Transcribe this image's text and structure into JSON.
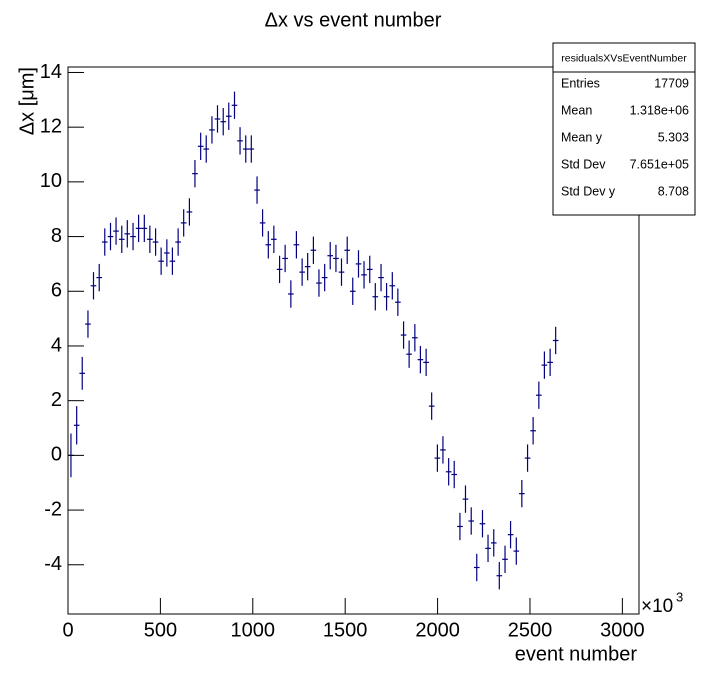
{
  "chart_data": {
    "type": "profile",
    "title": "Δx vs event number",
    "x_label": "event number",
    "y_label": "Δx [μm]",
    "x_multiplier": "×10",
    "x_multiplier_exp": "3",
    "color": "#000080",
    "xlim": [
      0,
      3090
    ],
    "ylim": [
      -5.8,
      14.2
    ],
    "xticks": [
      0,
      500,
      1000,
      1500,
      2000,
      2500,
      3000
    ],
    "yticks": [
      -4,
      -2,
      0,
      2,
      4,
      6,
      8,
      10,
      12,
      14
    ],
    "x": [
      16,
      47,
      77,
      108,
      138,
      169,
      199,
      230,
      260,
      291,
      321,
      352,
      382,
      413,
      443,
      474,
      504,
      535,
      565,
      596,
      626,
      657,
      687,
      718,
      748,
      779,
      809,
      840,
      870,
      901,
      931,
      962,
      992,
      1023,
      1053,
      1084,
      1114,
      1145,
      1175,
      1206,
      1236,
      1267,
      1297,
      1328,
      1358,
      1389,
      1419,
      1450,
      1480,
      1511,
      1541,
      1572,
      1602,
      1633,
      1663,
      1694,
      1724,
      1755,
      1785,
      1816,
      1846,
      1877,
      1907,
      1938,
      1968,
      1999,
      2029,
      2060,
      2090,
      2121,
      2151,
      2182,
      2212,
      2243,
      2273,
      2304,
      2334,
      2365,
      2395,
      2426,
      2456,
      2487,
      2517,
      2548,
      2578,
      2609,
      2639
    ],
    "values": [
      0,
      1.1,
      3.0,
      4.8,
      6.2,
      6.5,
      7.8,
      8.0,
      8.2,
      7.9,
      8.1,
      8.0,
      8.3,
      8.3,
      7.9,
      7.8,
      7.1,
      7.4,
      7.1,
      7.8,
      8.5,
      8.9,
      10.3,
      11.3,
      11.2,
      11.9,
      12.3,
      12.2,
      12.4,
      12.8,
      11.5,
      11.2,
      11.2,
      9.7,
      8.5,
      7.7,
      7.9,
      6.8,
      7.2,
      5.9,
      7.7,
      6.7,
      6.9,
      7.5,
      6.3,
      6.5,
      7.3,
      7.2,
      6.7,
      7.5,
      6.0,
      7.0,
      6.6,
      6.8,
      5.8,
      6.5,
      5.8,
      6.2,
      5.6,
      4.4,
      3.7,
      4.3,
      3.5,
      3.4,
      1.8,
      -0.1,
      0.2,
      -0.6,
      -0.7,
      -2.6,
      -1.6,
      -2.4,
      -4.1,
      -2.5,
      -3.4,
      -3.2,
      -4.4,
      -3.8,
      -2.9,
      -3.5,
      -1.4,
      -0.1,
      0.9,
      2.2,
      3.3,
      3.4,
      4.2
    ],
    "errors": [
      0.8,
      0.7,
      0.6,
      0.5,
      0.5,
      0.5,
      0.5,
      0.5,
      0.5,
      0.5,
      0.5,
      0.5,
      0.5,
      0.5,
      0.5,
      0.5,
      0.5,
      0.5,
      0.5,
      0.5,
      0.5,
      0.5,
      0.5,
      0.5,
      0.5,
      0.5,
      0.5,
      0.5,
      0.5,
      0.5,
      0.5,
      0.5,
      0.5,
      0.5,
      0.5,
      0.5,
      0.5,
      0.5,
      0.5,
      0.5,
      0.5,
      0.5,
      0.5,
      0.5,
      0.5,
      0.5,
      0.5,
      0.5,
      0.5,
      0.5,
      0.5,
      0.5,
      0.5,
      0.5,
      0.5,
      0.5,
      0.5,
      0.5,
      0.5,
      0.5,
      0.5,
      0.5,
      0.5,
      0.5,
      0.5,
      0.5,
      0.5,
      0.5,
      0.5,
      0.5,
      0.5,
      0.5,
      0.5,
      0.5,
      0.5,
      0.5,
      0.5,
      0.5,
      0.5,
      0.5,
      0.5,
      0.5,
      0.5,
      0.5,
      0.5,
      0.5,
      0.5
    ],
    "stats": {
      "title": "residualsXVsEventNumber",
      "rows": [
        [
          "Entries",
          "17709"
        ],
        [
          "Mean",
          "1.318e+06"
        ],
        [
          "Mean y",
          "5.303"
        ],
        [
          "Std Dev",
          "7.651e+05"
        ],
        [
          "Std Dev y",
          "8.708"
        ]
      ]
    }
  }
}
